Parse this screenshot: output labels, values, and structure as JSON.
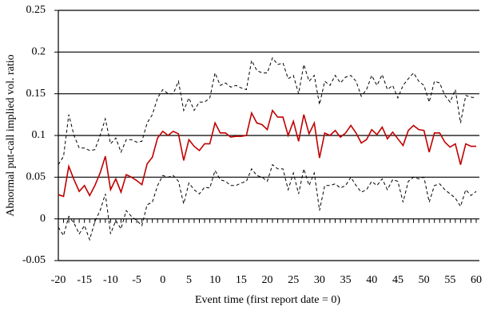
{
  "chart_data": {
    "type": "line",
    "x_label": "Event time (first report date = 0)",
    "y_label": "Abnormal put-call implied vol. ratio",
    "x": [
      -20,
      -19,
      -18,
      -17,
      -16,
      -15,
      -14,
      -13,
      -12,
      -11,
      -10,
      -9,
      -8,
      -7,
      -6,
      -5,
      -4,
      -3,
      -2,
      -1,
      0,
      1,
      2,
      3,
      4,
      5,
      6,
      7,
      8,
      9,
      10,
      11,
      12,
      13,
      14,
      15,
      16,
      17,
      18,
      19,
      20,
      21,
      22,
      23,
      24,
      25,
      26,
      27,
      28,
      29,
      30,
      31,
      32,
      33,
      34,
      35,
      36,
      37,
      38,
      39,
      40,
      41,
      42,
      43,
      44,
      45,
      46,
      47,
      48,
      49,
      50,
      51,
      52,
      53,
      54,
      55,
      56,
      57,
      58,
      59,
      60
    ],
    "series": [
      {
        "color": "#c00000",
        "style": "solid",
        "values": [
          0.029,
          0.027,
          0.063,
          0.047,
          0.033,
          0.04,
          0.028,
          0.04,
          0.055,
          0.075,
          0.035,
          0.048,
          0.032,
          0.053,
          0.05,
          0.046,
          0.041,
          0.066,
          0.074,
          0.097,
          0.105,
          0.1,
          0.105,
          0.102,
          0.07,
          0.095,
          0.087,
          0.082,
          0.09,
          0.09,
          0.115,
          0.103,
          0.103,
          0.098,
          0.099,
          0.099,
          0.1,
          0.127,
          0.115,
          0.113,
          0.107,
          0.13,
          0.122,
          0.122,
          0.1,
          0.117,
          0.093,
          0.125,
          0.102,
          0.115,
          0.073,
          0.103,
          0.1,
          0.106,
          0.098,
          0.103,
          0.112,
          0.103,
          0.091,
          0.095,
          0.107,
          0.101,
          0.11,
          0.096,
          0.104,
          0.096,
          0.088,
          0.106,
          0.112,
          0.107,
          0.106,
          0.08,
          0.103,
          0.103,
          0.092,
          0.086,
          0.09,
          0.065,
          0.09,
          0.087,
          0.087
        ]
      },
      {
        "color": "#000000",
        "style": "dashed",
        "values": [
          0.065,
          0.075,
          0.125,
          0.1,
          0.085,
          0.085,
          0.082,
          0.083,
          0.1,
          0.12,
          0.09,
          0.097,
          0.08,
          0.095,
          0.095,
          0.092,
          0.093,
          0.115,
          0.125,
          0.145,
          0.155,
          0.15,
          0.15,
          0.165,
          0.13,
          0.145,
          0.13,
          0.14,
          0.14,
          0.145,
          0.175,
          0.16,
          0.163,
          0.158,
          0.16,
          0.157,
          0.155,
          0.19,
          0.178,
          0.175,
          0.175,
          0.193,
          0.185,
          0.187,
          0.168,
          0.172,
          0.15,
          0.185,
          0.165,
          0.172,
          0.137,
          0.165,
          0.16,
          0.172,
          0.163,
          0.17,
          0.172,
          0.165,
          0.147,
          0.155,
          0.172,
          0.16,
          0.173,
          0.155,
          0.16,
          0.145,
          0.16,
          0.168,
          0.175,
          0.165,
          0.16,
          0.14,
          0.165,
          0.163,
          0.148,
          0.14,
          0.155,
          0.115,
          0.148,
          0.146,
          0.145
        ]
      },
      {
        "color": "#000000",
        "style": "dashed",
        "values": [
          -0.01,
          -0.02,
          0.003,
          -0.005,
          -0.018,
          -0.008,
          -0.025,
          -0.003,
          0.01,
          0.03,
          -0.018,
          -0.002,
          -0.012,
          0.01,
          0.003,
          -0.002,
          -0.008,
          0.017,
          0.02,
          0.04,
          0.052,
          0.05,
          0.052,
          0.045,
          0.018,
          0.043,
          0.035,
          0.03,
          0.038,
          0.037,
          0.058,
          0.047,
          0.045,
          0.04,
          0.04,
          0.043,
          0.045,
          0.06,
          0.052,
          0.05,
          0.045,
          0.065,
          0.06,
          0.06,
          0.035,
          0.055,
          0.03,
          0.06,
          0.04,
          0.055,
          0.01,
          0.04,
          0.04,
          0.042,
          0.037,
          0.04,
          0.05,
          0.04,
          0.032,
          0.035,
          0.045,
          0.04,
          0.048,
          0.035,
          0.047,
          0.045,
          0.02,
          0.045,
          0.05,
          0.048,
          0.05,
          0.02,
          0.04,
          0.042,
          0.035,
          0.03,
          0.025,
          0.015,
          0.035,
          0.028,
          0.033
        ]
      }
    ],
    "xlim": [
      -20,
      60
    ],
    "xticks": [
      -20,
      -15,
      -10,
      -5,
      0,
      5,
      10,
      15,
      20,
      25,
      30,
      35,
      40,
      45,
      50,
      55,
      60
    ],
    "ylim": [
      -0.05,
      0.25
    ],
    "yticks": [
      -0.05,
      0,
      0.05,
      0.1,
      0.15,
      0.2,
      0.25
    ],
    "grid": true
  }
}
